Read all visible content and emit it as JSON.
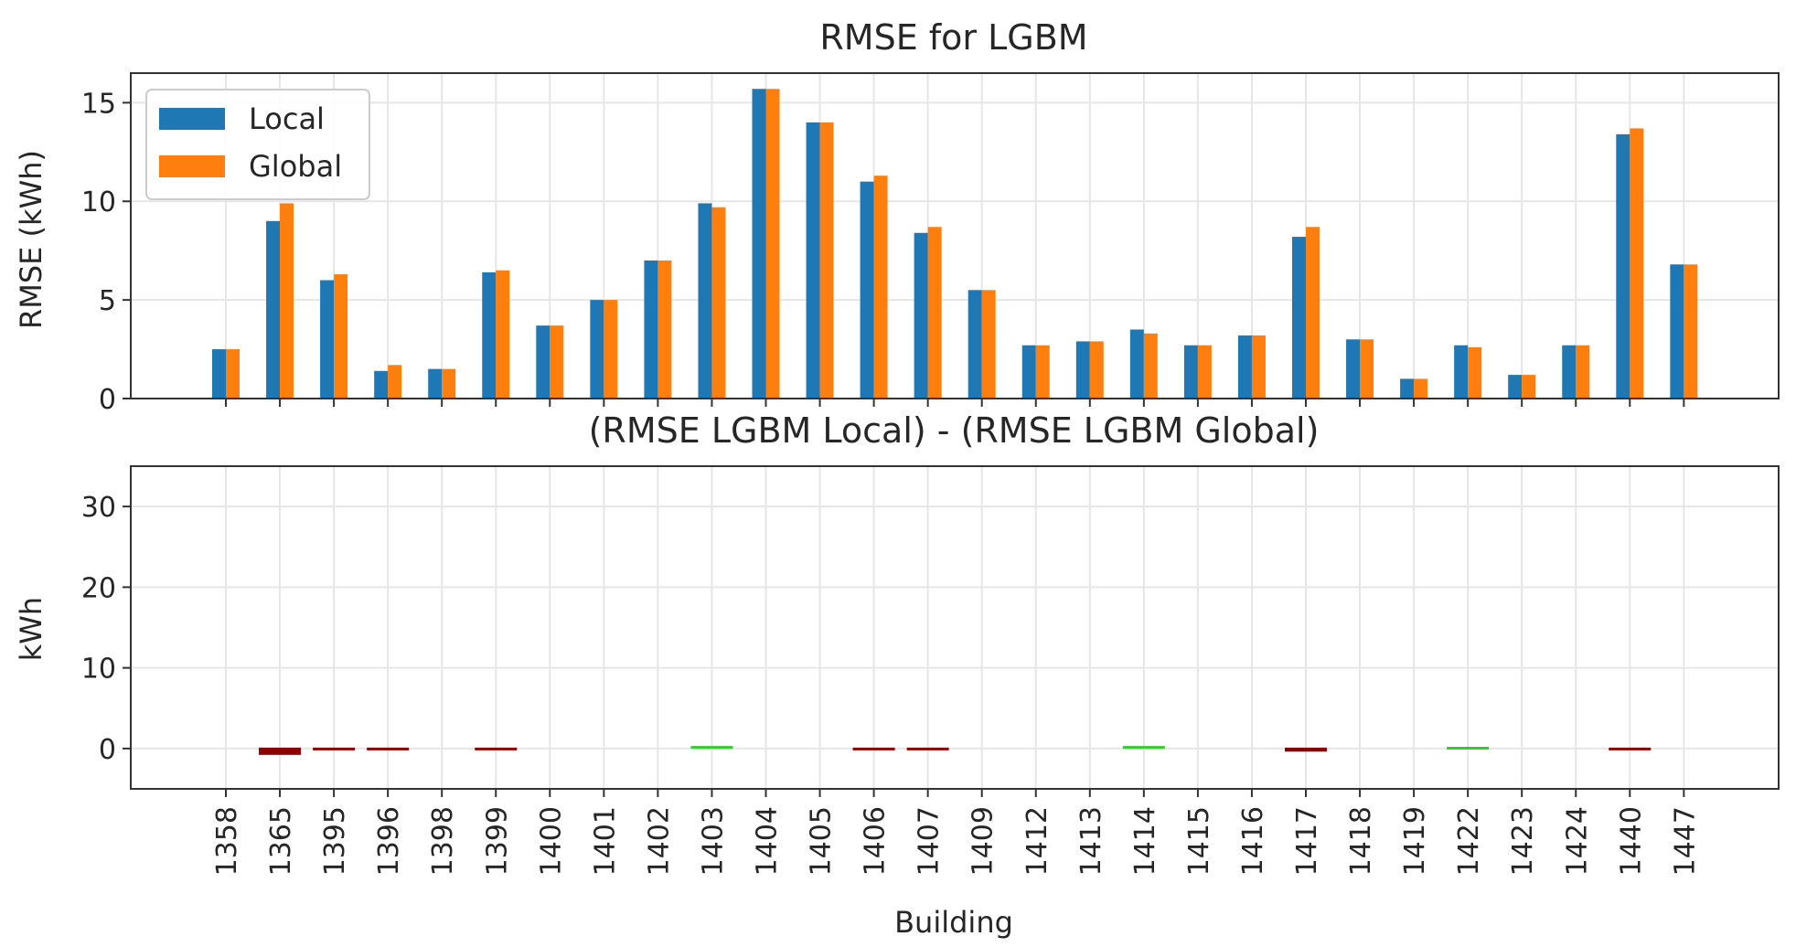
{
  "chart_data": [
    {
      "type": "bar",
      "title": "RMSE for LGBM",
      "xlabel": "",
      "ylabel": "RMSE (kWh)",
      "ylim": [
        0,
        16.5
      ],
      "yticks": [
        0,
        5,
        10,
        15
      ],
      "grid": true,
      "legend": "top-left",
      "categories": [
        "1358",
        "1365",
        "1395",
        "1396",
        "1398",
        "1399",
        "1400",
        "1401",
        "1402",
        "1403",
        "1404",
        "1405",
        "1406",
        "1407",
        "1409",
        "1412",
        "1413",
        "1414",
        "1415",
        "1416",
        "1417",
        "1418",
        "1419",
        "1422",
        "1423",
        "1424",
        "1440",
        "1447"
      ],
      "series": [
        {
          "name": "Local",
          "color": "#1f77b4",
          "values": [
            2.5,
            9.0,
            6.0,
            1.4,
            1.5,
            6.4,
            3.7,
            5.0,
            7.0,
            9.9,
            15.7,
            14.0,
            11.0,
            8.4,
            5.5,
            2.7,
            2.9,
            3.5,
            2.7,
            3.2,
            8.2,
            3.0,
            1.0,
            2.7,
            1.2,
            2.7,
            13.4,
            6.8
          ]
        },
        {
          "name": "Global",
          "color": "#ff7f0e",
          "values": [
            2.5,
            9.9,
            6.3,
            1.7,
            1.5,
            6.5,
            3.7,
            5.0,
            7.0,
            9.7,
            15.7,
            14.0,
            11.3,
            8.7,
            5.5,
            2.7,
            2.9,
            3.3,
            2.7,
            3.2,
            8.7,
            3.0,
            1.0,
            2.6,
            1.2,
            2.7,
            13.7,
            6.8
          ]
        }
      ]
    },
    {
      "type": "bar",
      "title": "(RMSE LGBM Local) - (RMSE LGBM Global)",
      "xlabel": "Building",
      "ylabel": "kWh",
      "ylim": [
        -5,
        35
      ],
      "yticks": [
        0,
        10,
        20,
        30
      ],
      "grid": true,
      "categories": [
        "1358",
        "1365",
        "1395",
        "1396",
        "1398",
        "1399",
        "1400",
        "1401",
        "1402",
        "1403",
        "1404",
        "1405",
        "1406",
        "1407",
        "1409",
        "1412",
        "1413",
        "1414",
        "1415",
        "1416",
        "1417",
        "1418",
        "1419",
        "1422",
        "1423",
        "1424",
        "1440",
        "1447"
      ],
      "values": [
        0.0,
        -0.9,
        -0.3,
        -0.3,
        0.0,
        -0.1,
        0.0,
        0.0,
        0.0,
        0.2,
        0.0,
        0.0,
        -0.3,
        -0.3,
        0.0,
        0.0,
        0.0,
        0.2,
        0.0,
        0.0,
        -0.5,
        0.0,
        0.0,
        0.1,
        0.0,
        0.0,
        -0.3,
        0.0
      ],
      "colors": {
        "negative": "#8b0000",
        "positive": "#32cd32"
      }
    }
  ]
}
